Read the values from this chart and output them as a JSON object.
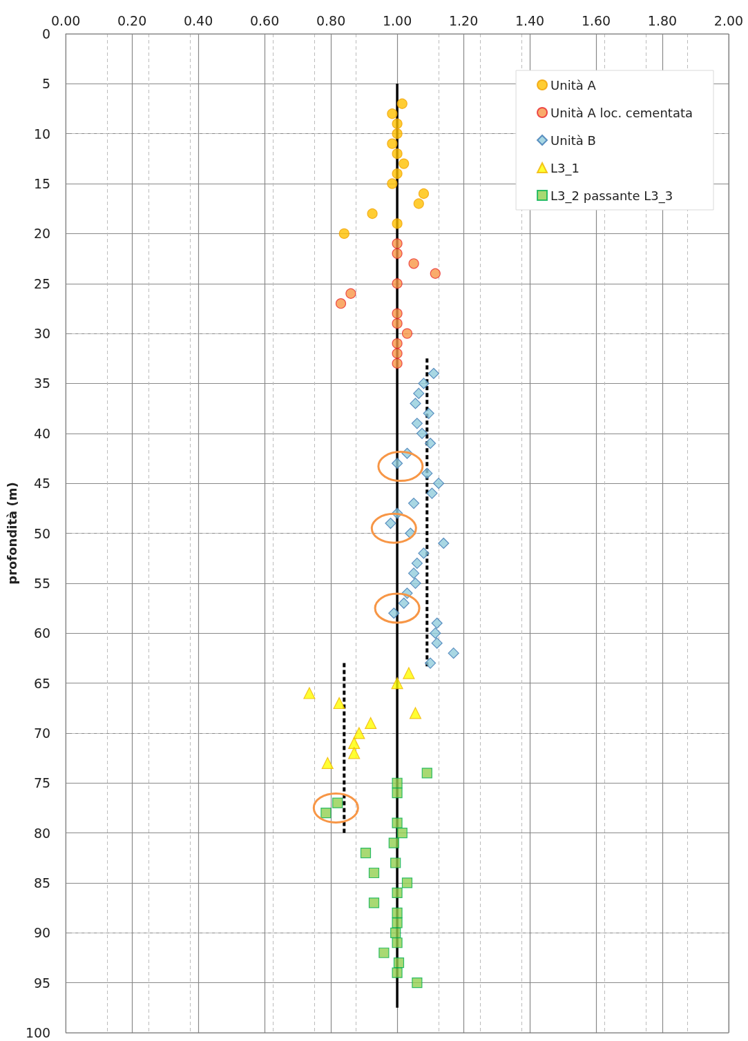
{
  "chart_data": {
    "type": "scatter",
    "ylabel": "profondità (m)",
    "xlim": [
      0,
      2
    ],
    "xticks": [
      {
        "value": 0,
        "label": "0.00"
      },
      {
        "value": 0.2,
        "label": "0.20"
      },
      {
        "value": 0.4,
        "label": "0.40"
      },
      {
        "value": 0.6,
        "label": "0.60"
      },
      {
        "value": 0.8,
        "label": "0.80"
      },
      {
        "value": 1,
        "label": "1.00"
      },
      {
        "value": 1.2,
        "label": "1.20"
      },
      {
        "value": 1.4,
        "label": "1.40"
      },
      {
        "value": 1.6,
        "label": "1.60"
      },
      {
        "value": 1.8,
        "label": "1.80"
      },
      {
        "value": 2,
        "label": "2.00"
      }
    ],
    "ylim": [
      100,
      0
    ],
    "yticks": [
      0,
      5,
      10,
      15,
      20,
      25,
      30,
      35,
      40,
      45,
      50,
      55,
      60,
      65,
      70,
      75,
      80,
      85,
      90,
      95,
      100
    ],
    "grid": true,
    "legend": "top right",
    "series": [
      {
        "name": "Unità A",
        "color": "#ffc000",
        "marker": "circle",
        "x": [
          1.015,
          0.985,
          1.0,
          1.0,
          0.985,
          1.0,
          1.02,
          1.0,
          0.985,
          1.08,
          1.065,
          0.925,
          1.0,
          0.84
        ],
        "values": [
          7,
          8,
          9,
          10,
          11,
          12,
          13,
          14,
          15,
          16,
          17,
          18,
          19,
          20
        ]
      },
      {
        "name": "Unità A loc. cementata",
        "color": "#f79646",
        "marker": "circle",
        "x": [
          1.0,
          1.0,
          1.05,
          1.115,
          1.0,
          0.86,
          0.83,
          1.0,
          1.0,
          1.03,
          1.0,
          1.0,
          1.0
        ],
        "values": [
          21,
          22,
          23,
          24,
          25,
          26,
          27,
          28,
          29,
          30,
          31,
          32,
          33
        ]
      },
      {
        "name": "Unità B",
        "color": "#92cddc",
        "marker": "diamond",
        "x": [
          1.11,
          1.08,
          1.065,
          1.055,
          1.095,
          1.06,
          1.075,
          1.1,
          1.03,
          1.0,
          1.09,
          1.125,
          1.105,
          1.05,
          1.0,
          0.98,
          1.04,
          1.14,
          1.08,
          1.06,
          1.05,
          1.055,
          1.03,
          1.02,
          0.99,
          1.12,
          1.115,
          1.12,
          1.17,
          1.1
        ],
        "values": [
          34,
          35,
          36,
          37,
          38,
          39,
          40,
          41,
          42,
          43,
          44,
          45,
          46,
          47,
          48,
          49,
          50,
          51,
          52,
          53,
          54,
          55,
          56,
          57,
          58,
          59,
          60,
          61,
          62,
          63
        ]
      },
      {
        "name": "L3_1",
        "color": "#ffff00",
        "marker": "triangle",
        "x": [
          1.035,
          1.0,
          0.735,
          0.825,
          1.055,
          0.92,
          0.885,
          0.87,
          0.87,
          0.79
        ],
        "values": [
          64,
          65,
          66,
          67,
          68,
          69,
          70,
          71,
          72,
          73
        ]
      },
      {
        "name": "L3_2 passante L3_3",
        "color": "#92d050",
        "marker": "square",
        "x": [
          1.09,
          1.0,
          1.0,
          0.82,
          0.785,
          1.0,
          1.015,
          0.99,
          0.905,
          0.995,
          0.93,
          1.03,
          1.0,
          0.93,
          1.0,
          1.0,
          0.995,
          1.0,
          0.96,
          1.005,
          1.0,
          1.06
        ],
        "values": [
          74,
          75,
          76,
          77,
          78,
          79,
          80,
          81,
          82,
          83,
          84,
          85,
          86,
          87,
          88,
          89,
          90,
          91,
          92,
          93,
          94,
          95
        ]
      },
      {
        "type": "line",
        "color": "#000000",
        "line_style": "solid",
        "x": [
          1.0,
          1.0
        ],
        "values": [
          5,
          97.5
        ]
      },
      {
        "type": "line",
        "color": "#000000",
        "line_style": "dashed",
        "x": [
          1.09,
          1.09
        ],
        "values": [
          32.5,
          63.5
        ]
      },
      {
        "type": "line",
        "color": "#000000",
        "line_style": "dashed",
        "x": [
          0.84,
          0.84
        ],
        "values": [
          63,
          80
        ]
      }
    ]
  }
}
